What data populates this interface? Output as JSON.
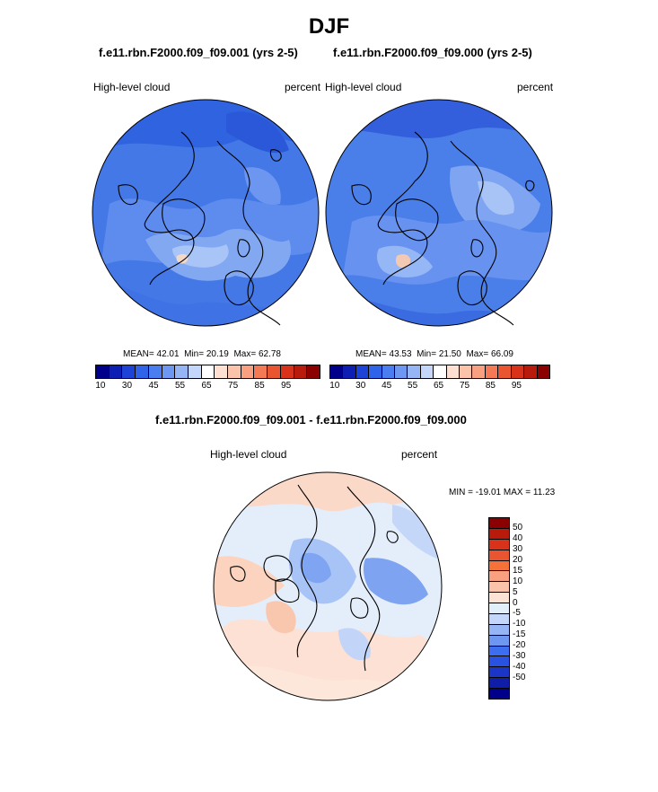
{
  "title": "DJF",
  "panels": [
    {
      "title": "f.e11.rbn.F2000.f09_f09.001 (yrs 2-5)",
      "left_label": "High-level cloud",
      "right_label": "percent",
      "stats": {
        "mean_label": "MEAN=",
        "mean": "42.01",
        "min_label": "Min=",
        "min": "20.19",
        "max_label": "Max=",
        "max": "62.78"
      }
    },
    {
      "title": "f.e11.rbn.F2000.f09_f09.000 (yrs 2-5)",
      "left_label": "High-level cloud",
      "right_label": "percent",
      "stats": {
        "mean_label": "MEAN=",
        "mean": "43.53",
        "min_label": "Min=",
        "min": "21.50",
        "max_label": "Max=",
        "max": "66.09"
      }
    }
  ],
  "diff_panel": {
    "title": "f.e11.rbn.F2000.f09_f09.001 - f.e11.rbn.F2000.f09_f09.000",
    "left_label": "High-level cloud",
    "right_label": "percent",
    "minmax": "MIN = -19.01 MAX =  11.23"
  },
  "colorbar_abs": {
    "colors": [
      "#00008b",
      "#0d1fb3",
      "#1d43d6",
      "#2f63e8",
      "#4a7df0",
      "#6e97f2",
      "#96b5f5",
      "#c4d6f9",
      "#ffffff",
      "#fde0d2",
      "#fbc3aa",
      "#f8a07f",
      "#f37a55",
      "#ea5531",
      "#d8321a",
      "#b81b0c",
      "#8b0000"
    ],
    "tick_labels": [
      "10",
      "30",
      "45",
      "55",
      "65",
      "75",
      "85",
      "95"
    ],
    "tick_positions": [
      0.5,
      2.5,
      4.5,
      6.5,
      8.5,
      10.5,
      12.5,
      14.5
    ]
  },
  "colorbar_diff": {
    "colors": [
      "#8b0000",
      "#b81b0c",
      "#d8321a",
      "#ea5531",
      "#f5713a",
      "#f8a07f",
      "#fbc3aa",
      "#fde3d6",
      "#e3eefb",
      "#c4d6f9",
      "#96b5f5",
      "#6e97f2",
      "#3d6ef0",
      "#2a52e0",
      "#1b36c6",
      "#0e1ea8",
      "#00008b"
    ],
    "labels": [
      "50",
      "40",
      "30",
      "20",
      "15",
      "10",
      "5",
      "0",
      "-5",
      "-10",
      "-15",
      "-20",
      "-30",
      "-40",
      "-50"
    ]
  },
  "colors": {
    "map_base_abs": "#4a7ee8",
    "map_base_diff": "#dbe8fb"
  }
}
